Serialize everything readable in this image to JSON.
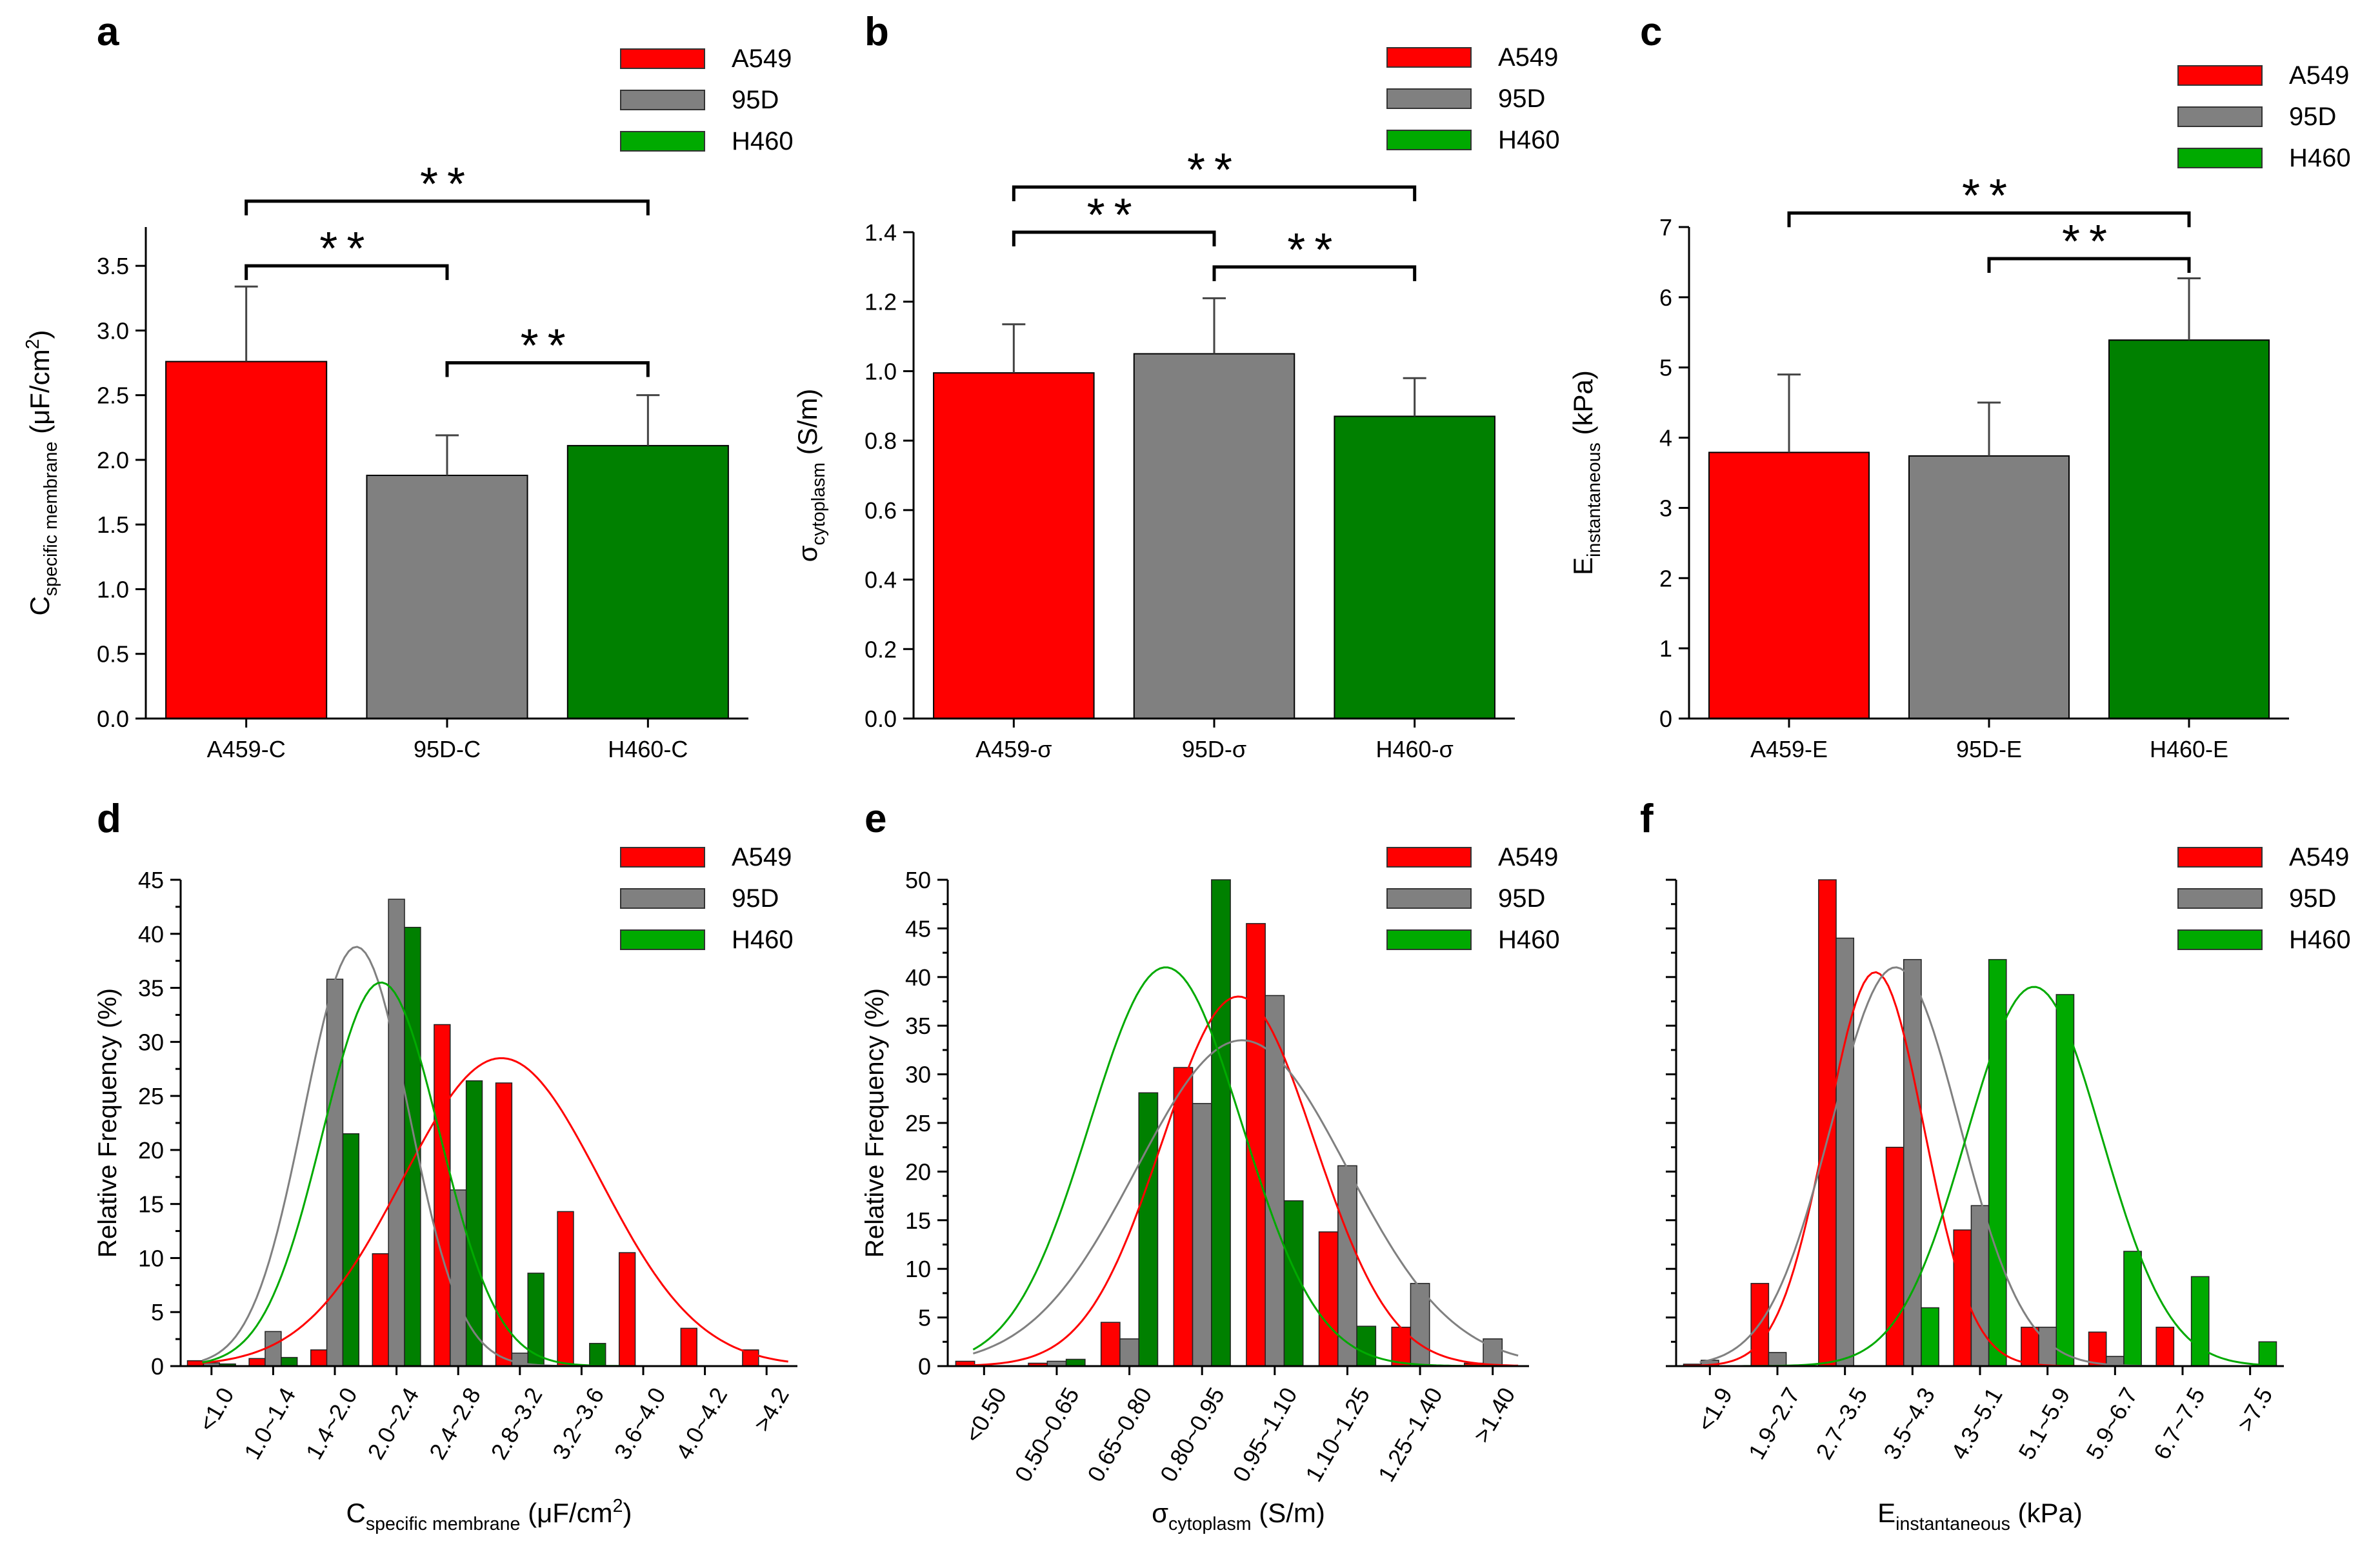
{
  "chart_data": [
    {
      "id": "a",
      "letter": "a",
      "type": "bar",
      "categories": [
        "A459-C",
        "95D-C",
        "H460-C"
      ],
      "values": [
        2.76,
        1.88,
        2.11
      ],
      "errors": [
        0.58,
        0.31,
        0.39
      ],
      "colors": [
        "#ff0000",
        "#808080",
        "#008000"
      ],
      "ylim": [
        0,
        3.8
      ],
      "yticks": [
        "0.0",
        "0.5",
        "1.0",
        "1.5",
        "2.0",
        "2.5",
        "3.0",
        "3.5"
      ],
      "ylabel": {
        "main": "C",
        "sub": "specific membrane",
        "tail": " (μF/cm",
        "sup": "2",
        "end": ")"
      },
      "legend": [
        "A549",
        "95D",
        "H460"
      ],
      "legend_colors": [
        "#ff0000",
        "#808080",
        "#00aa00"
      ],
      "significance": [
        {
          "from": 0,
          "to": 1,
          "y": 3.5,
          "label": "**"
        },
        {
          "from": 1,
          "to": 2,
          "y": 2.75,
          "label": "**"
        },
        {
          "from": 0,
          "to": 2,
          "y": 4.0,
          "label": "**"
        }
      ]
    },
    {
      "id": "b",
      "letter": "b",
      "type": "bar",
      "categories": [
        "A459-σ",
        "95D-σ",
        "H460-σ"
      ],
      "values": [
        0.995,
        1.05,
        0.87
      ],
      "errors": [
        0.14,
        0.16,
        0.11
      ],
      "colors": [
        "#ff0000",
        "#808080",
        "#008000"
      ],
      "ylim": [
        0,
        1.4
      ],
      "yticks": [
        "0.0",
        "0.2",
        "0.4",
        "0.6",
        "0.8",
        "1.0",
        "1.2",
        "1.4"
      ],
      "ylabel": {
        "main": "σ",
        "sub": "cytoplasm",
        "tail": " (S/m)",
        "sup": "",
        "end": ""
      },
      "legend": [
        "A549",
        "95D",
        "H460"
      ],
      "legend_colors": [
        "#ff0000",
        "#808080",
        "#00aa00"
      ],
      "significance": [
        {
          "from": 0,
          "to": 1,
          "y": 1.4,
          "label": "**"
        },
        {
          "from": 1,
          "to": 2,
          "y": 1.3,
          "label": "**"
        },
        {
          "from": 0,
          "to": 2,
          "y": 1.53,
          "label": "**"
        }
      ]
    },
    {
      "id": "c",
      "letter": "c",
      "type": "bar",
      "categories": [
        "A459-E",
        "95D-E",
        "H460-E"
      ],
      "values": [
        3.79,
        3.74,
        5.39
      ],
      "errors": [
        1.11,
        0.76,
        0.88
      ],
      "colors": [
        "#ff0000",
        "#808080",
        "#008000"
      ],
      "ylim": [
        0,
        7
      ],
      "yticks": [
        "0",
        "1",
        "2",
        "3",
        "4",
        "5",
        "6",
        "7"
      ],
      "ylabel": {
        "main": "E",
        "sub": "instantaneous",
        "tail": " (kPa)",
        "sup": "",
        "end": ""
      },
      "legend": [
        "A549",
        "95D",
        "H460"
      ],
      "legend_colors": [
        "#ff0000",
        "#808080",
        "#00aa00"
      ],
      "significance": [
        {
          "from": 1,
          "to": 2,
          "y": 6.55,
          "label": "**"
        },
        {
          "from": 0,
          "to": 2,
          "y": 7.2,
          "label": "**"
        }
      ]
    },
    {
      "id": "d",
      "letter": "d",
      "type": "histogram",
      "categories": [
        "<1.0",
        "1.0~1.4",
        "1.4~2.0",
        "2.0~2.4",
        "2.4~2.8",
        "2.8~3.2",
        "3.2~3.6",
        "3.6~4.0",
        "4.0~4.2",
        ">4.2"
      ],
      "series": [
        {
          "name": "A549",
          "color": "#ff0000",
          "values": [
            0.5,
            0.7,
            1.5,
            10.4,
            31.6,
            26.2,
            14.3,
            10.5,
            3.5,
            1.5
          ]
        },
        {
          "name": "95D",
          "color": "#808080",
          "values": [
            0.3,
            3.2,
            35.8,
            43.2,
            16.3,
            1.2,
            0,
            0,
            0,
            0
          ]
        },
        {
          "name": "H460",
          "color": "#008000",
          "values": [
            0.2,
            0.8,
            21.5,
            40.6,
            26.4,
            8.6,
            2.1,
            0,
            0,
            0
          ]
        }
      ],
      "curves": [
        {
          "name": "A549",
          "color": "#ff0000",
          "mu": 5.2,
          "sigma": 1.6,
          "peak": 28.5
        },
        {
          "name": "95D",
          "color": "#808080",
          "mu": 2.85,
          "sigma": 0.85,
          "peak": 38.8
        },
        {
          "name": "H460",
          "color": "#00aa00",
          "mu": 3.25,
          "sigma": 0.95,
          "peak": 35.5
        }
      ],
      "ylim": [
        0,
        45
      ],
      "yticks": [
        "0",
        "5",
        "10",
        "15",
        "20",
        "25",
        "30",
        "35",
        "40",
        "45"
      ],
      "ylabel": "Relative Frequency (%)",
      "xlabel": {
        "main": "C",
        "sub": "specific membrane",
        "tail": " (μF/cm",
        "sup": "2",
        "end": ")"
      },
      "legend": [
        "A549",
        "95D",
        "H460"
      ],
      "legend_colors": [
        "#ff0000",
        "#808080",
        "#00aa00"
      ],
      "ytick_labels_visible": true
    },
    {
      "id": "e",
      "letter": "e",
      "type": "histogram",
      "categories": [
        "<0.50",
        "0.50~0.65",
        "0.65~0.80",
        "0.80~0.95",
        "0.95~1.10",
        "1.10~1.25",
        "1.25~1.40",
        ">1.40"
      ],
      "series": [
        {
          "name": "A549",
          "color": "#ff0000",
          "values": [
            0.5,
            0.3,
            4.5,
            30.7,
            45.5,
            13.8,
            4.0,
            0.3
          ]
        },
        {
          "name": "95D",
          "color": "#808080",
          "values": [
            0,
            0.5,
            2.8,
            27.0,
            38.1,
            20.6,
            8.5,
            2.8
          ]
        },
        {
          "name": "H460",
          "color": "#008000",
          "values": [
            0,
            0.7,
            28.1,
            50.0,
            17.0,
            4.1,
            0,
            0
          ]
        }
      ],
      "curves": [
        {
          "name": "A549",
          "color": "#ff0000",
          "mu": 4.0,
          "sigma": 1.05,
          "peak": 38.0
        },
        {
          "name": "95D",
          "color": "#808080",
          "mu": 4.05,
          "sigma": 1.45,
          "peak": 33.5
        },
        {
          "name": "H460",
          "color": "#00aa00",
          "mu": 3.0,
          "sigma": 1.05,
          "peak": 41.0
        }
      ],
      "ylim": [
        0,
        50
      ],
      "yticks": [
        "0",
        "5",
        "10",
        "15",
        "20",
        "25",
        "30",
        "35",
        "40",
        "45",
        "50"
      ],
      "ylabel": "Relative Frequency (%)",
      "xlabel": {
        "main": "σ",
        "sub": "cytoplasm",
        "tail": " (S/m)",
        "sup": "",
        "end": ""
      },
      "legend": [
        "A549",
        "95D",
        "H460"
      ],
      "legend_colors": [
        "#ff0000",
        "#808080",
        "#00aa00"
      ],
      "ytick_labels_visible": true
    },
    {
      "id": "f",
      "letter": "f",
      "type": "histogram",
      "categories": [
        "<1.9",
        "1.9~2.7",
        "2.7~3.5",
        "3.5~4.3",
        "4.3~5.1",
        "5.1~5.9",
        "5.9~6.7",
        "6.7~7.5",
        ">7.5"
      ],
      "series": [
        {
          "name": "A549",
          "color": "#ff0000",
          "values": [
            0.2,
            8.5,
            50.0,
            22.5,
            14.0,
            4.0,
            3.5,
            4.0,
            0
          ]
        },
        {
          "name": "95D",
          "color": "#808080",
          "values": [
            0.6,
            1.4,
            44.0,
            41.8,
            16.5,
            4.0,
            1.0,
            0,
            0
          ]
        },
        {
          "name": "H460",
          "color": "#00aa00",
          "values": [
            0,
            0,
            0,
            6.0,
            41.8,
            38.2,
            11.8,
            9.2,
            2.5
          ]
        }
      ],
      "curves": [
        {
          "name": "A549",
          "color": "#ff0000",
          "mu": 2.95,
          "sigma": 0.72,
          "peak": 40.5
        },
        {
          "name": "95D",
          "color": "#808080",
          "mu": 3.25,
          "sigma": 0.95,
          "peak": 41.0
        },
        {
          "name": "H460",
          "color": "#00aa00",
          "mu": 5.3,
          "sigma": 1.0,
          "peak": 39.0
        }
      ],
      "ylim": [
        0,
        50
      ],
      "yticks": [
        "",
        "",
        "",
        "",
        "",
        "",
        "",
        "",
        "",
        "",
        ""
      ],
      "ylabel": "",
      "xlabel": {
        "main": "E",
        "sub": "instantaneous",
        "tail": " (kPa)",
        "sup": "",
        "end": ""
      },
      "legend": [
        "A549",
        "95D",
        "H460"
      ],
      "legend_colors": [
        "#ff0000",
        "#808080",
        "#00aa00"
      ],
      "ytick_labels_visible": false
    }
  ]
}
